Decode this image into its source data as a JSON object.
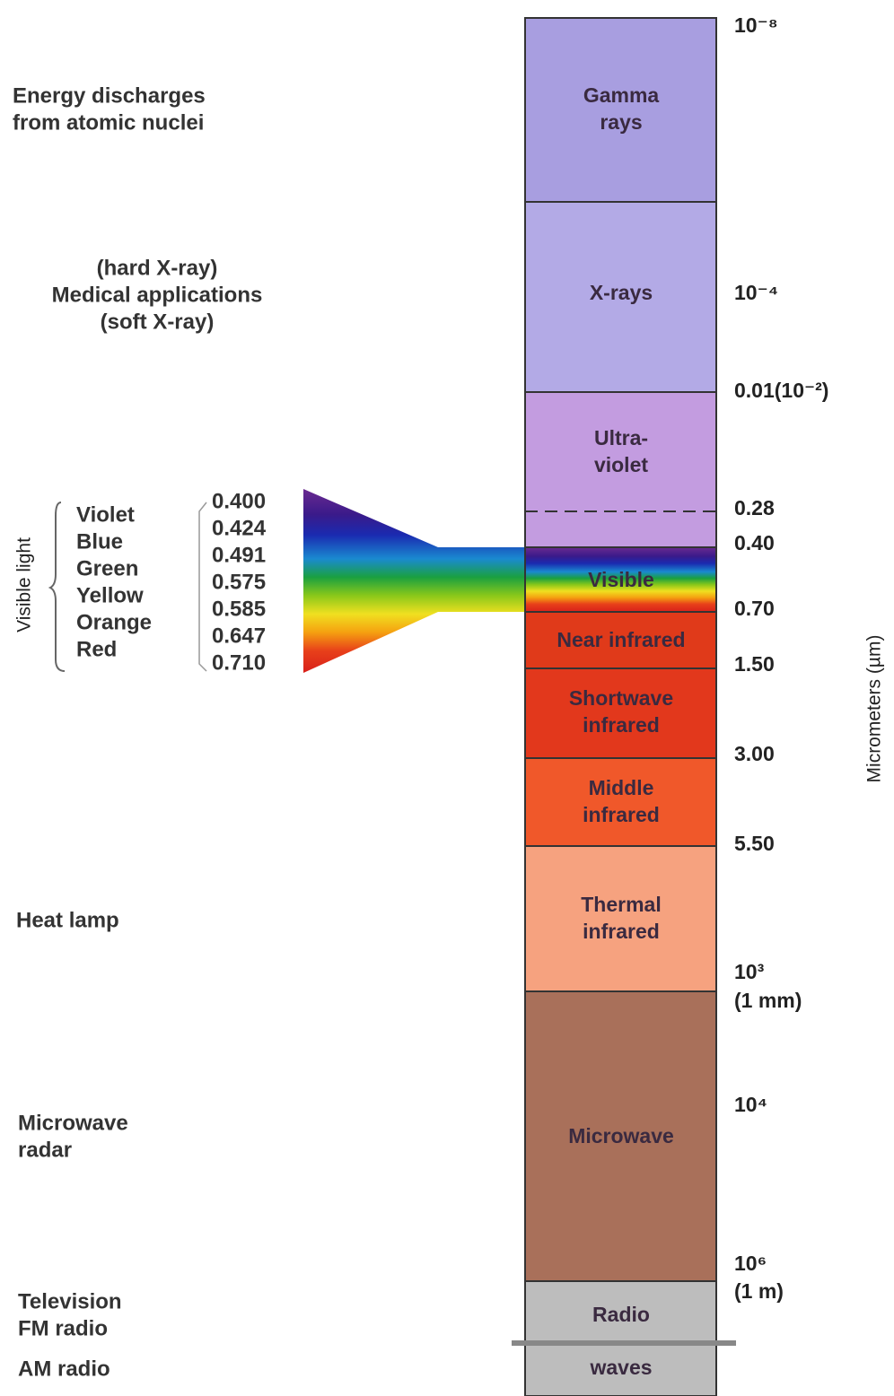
{
  "applications": [
    {
      "lines": [
        "Energy discharges",
        "from atomic nuclei"
      ]
    },
    {
      "lines": [
        "(hard X-ray)",
        "Medical applications",
        "(soft X-ray)"
      ]
    },
    {
      "lines": [
        "Heat lamp"
      ]
    },
    {
      "lines": [
        "Microwave",
        "radar"
      ]
    },
    {
      "lines": [
        "Television",
        "FM radio"
      ]
    },
    {
      "lines": [
        "AM radio"
      ]
    }
  ],
  "bands": [
    {
      "lines": [
        "Gamma",
        "rays"
      ]
    },
    {
      "lines": [
        "X-rays"
      ]
    },
    {
      "lines": [
        "Ultra-",
        "violet"
      ]
    },
    {
      "lines": [
        "Visible"
      ]
    },
    {
      "lines": [
        "Near infrared"
      ]
    },
    {
      "lines": [
        "Shortwave",
        "infrared"
      ]
    },
    {
      "lines": [
        "Middle",
        "infrared"
      ]
    },
    {
      "lines": [
        "Thermal",
        "infrared"
      ]
    },
    {
      "lines": [
        "Microwave"
      ]
    },
    {
      "lines": [
        "Radio",
        "waves"
      ]
    }
  ],
  "scale": {
    "axis_label": "Micrometers (µm)",
    "labels": [
      "10⁻⁸",
      "10⁻⁴",
      "0.01(10⁻²)",
      "0.28",
      "0.40",
      "0.70",
      "1.50",
      "3.00",
      "5.50",
      "10³",
      "(1 mm)",
      "10⁴",
      "10⁶",
      "(1 m)"
    ]
  },
  "visible_light": {
    "title": "Visible light",
    "colors": [
      "Violet",
      "Blue",
      "Green",
      "Yellow",
      "Orange",
      "Red"
    ],
    "wavelengths": [
      "0.400",
      "0.424",
      "0.491",
      "0.575",
      "0.585",
      "0.647",
      "0.710"
    ]
  }
}
